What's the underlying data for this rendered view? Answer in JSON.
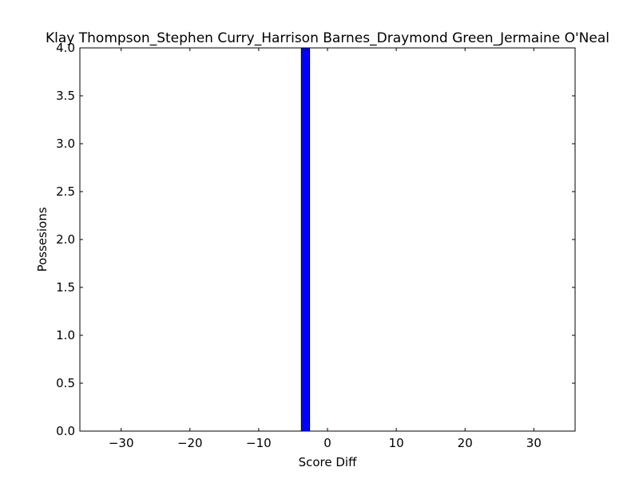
{
  "chart_data": {
    "type": "bar",
    "title": "Klay Thompson_Stephen Curry_Harrison Barnes_Draymond Green_Jermaine O'Neal",
    "xlabel": "Score Diff",
    "ylabel": "Possesions",
    "xlim": [
      -36,
      36
    ],
    "ylim": [
      0,
      4
    ],
    "xticks": [
      -30,
      -20,
      -10,
      0,
      10,
      20,
      30
    ],
    "xtick_labels": [
      "−30",
      "−20",
      "−10",
      "0",
      "10",
      "20",
      "30"
    ],
    "yticks": [
      0,
      0.5,
      1,
      1.5,
      2,
      2.5,
      3,
      3.5,
      4
    ],
    "ytick_labels": [
      "0.0",
      "0.5",
      "1.0",
      "1.5",
      "2.0",
      "2.5",
      "3.0",
      "3.5",
      "4.0"
    ],
    "grid": false,
    "bars": [
      {
        "x_start": -3.8,
        "x_end": -2.6,
        "value": 4
      }
    ],
    "bar_color": "#0000ff"
  }
}
